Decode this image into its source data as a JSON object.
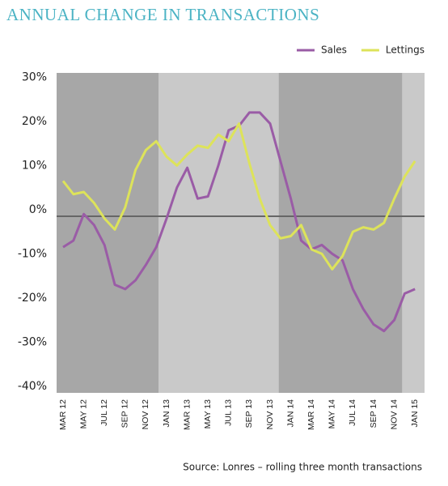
{
  "chart_data": {
    "type": "line",
    "title": "ANNUAL CHANGE IN TRANSACTIONS",
    "source": "Source: Lonres – rolling three month transactions",
    "categories": [
      "MAR 12",
      null,
      "MAY 12",
      null,
      "JUL 12",
      null,
      "SEP 12",
      null,
      "NOV 12",
      null,
      "JAN 13",
      null,
      "MAR 13",
      null,
      "MAY 13",
      null,
      "JUL 13",
      null,
      "SEP 13",
      null,
      "NOV 13",
      null,
      "JAN 14",
      null,
      "MAR 14",
      null,
      "MAY 14",
      null,
      "JUL 14",
      null,
      "SEP 14",
      null,
      "NOV 14",
      null,
      "JAN 15"
    ],
    "series": [
      {
        "name": "Sales",
        "color": "#9a5ca6",
        "values": [
          -7,
          -5.5,
          0.5,
          -2,
          -6.5,
          -15.5,
          -16.5,
          -14.5,
          -11,
          -7,
          -0.5,
          6.5,
          11,
          4,
          4.5,
          11.5,
          19.5,
          20.5,
          23.5,
          23.5,
          21,
          12.5,
          4,
          -5.5,
          -7.5,
          -6.5,
          -8.5,
          -10,
          -16.5,
          -21,
          -24.5,
          -26,
          -23.5,
          -17.5,
          -16.5
        ]
      },
      {
        "name": "Lettings",
        "color": "#dde35a",
        "values": [
          8,
          5,
          5.5,
          3,
          -0.5,
          -3,
          2,
          10.5,
          15,
          17,
          13.5,
          11.5,
          14,
          16,
          15.5,
          18.5,
          17,
          21,
          12,
          4,
          -2,
          -5,
          -4.5,
          -2,
          -7.5,
          -8.5,
          -12,
          -9,
          -3.5,
          -2.5,
          -3,
          -1.5,
          4,
          9,
          12.5
        ]
      }
    ],
    "ylim": [
      -40,
      30
    ],
    "yticks": [
      {
        "value": 30,
        "label": "30%"
      },
      {
        "value": 20,
        "label": "20%"
      },
      {
        "value": 10,
        "label": "10%"
      },
      {
        "value": 0,
        "label": "0%"
      },
      {
        "value": -10,
        "label": "-10%"
      },
      {
        "value": -20,
        "label": "-20%"
      },
      {
        "value": -30,
        "label": "-30%"
      },
      {
        "value": -40,
        "label": "-40%"
      }
    ],
    "legend": "top-right"
  }
}
